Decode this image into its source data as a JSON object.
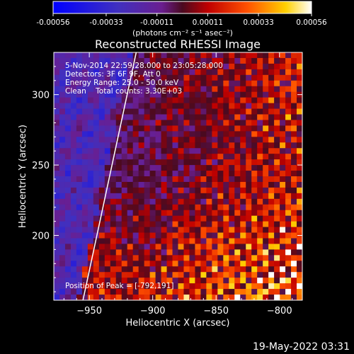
{
  "colorbar": {
    "tick_labels": [
      "-0.00056",
      "-0.00033",
      "-0.00011",
      "0.00011",
      "0.00033",
      "0.00056"
    ],
    "tick_values": [
      -0.00056,
      -0.00033,
      -0.00011,
      0.00011,
      0.00033,
      0.00056
    ],
    "range": [
      -0.00056,
      0.00056
    ],
    "unit_label": "(photons cm⁻² s⁻¹ asec⁻²)"
  },
  "chart_data": {
    "type": "heatmap",
    "title": "Reconstructed RHESSI Image",
    "xlabel": "Heliocentric X (arcsec)",
    "ylabel": "Heliocentric Y (arcsec)",
    "xlim": [
      -978,
      -782
    ],
    "ylim": [
      154,
      330
    ],
    "x_ticks": [
      -950,
      -900,
      -850,
      -800
    ],
    "x_tick_labels": [
      "−950",
      "−900",
      "−850",
      "−800"
    ],
    "y_ticks": [
      200,
      250,
      300
    ],
    "y_tick_labels": [
      "200",
      "250",
      "300"
    ],
    "annotations": [
      "5-Nov-2014 22:59:28.000 to 23:05:28.000",
      "Detectors: 3F 6F 9F, Att 0",
      "Energy Range: 25.0 - 50.0 keV",
      "Clean    Total counts: 3.30E+03"
    ],
    "peak_label": "Position of Peak = [-792,191]",
    "limb_color": "#ffffff",
    "colormap": "blue-purple-red-yellow-white"
  },
  "timestamp": "19-May-2022 03:31"
}
